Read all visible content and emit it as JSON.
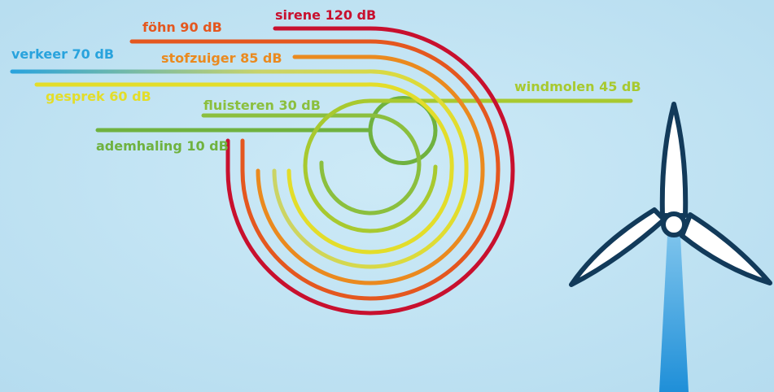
{
  "sources": [
    {
      "label": "sirene 120 dB",
      "color": "#c8102e"
    },
    {
      "label": "föhn 90 dB",
      "color": "#e4571f"
    },
    {
      "label": "stofzuiger 85 dB",
      "color": "#ea8a1f"
    },
    {
      "label": "verkeer 70 dB",
      "color": "#29a3dd"
    },
    {
      "label": "gesprek 60 dB",
      "color": "#e3dd2a"
    },
    {
      "label": "windmolen 45 dB",
      "color": "#a8c92f"
    },
    {
      "label": "fluisteren 30 dB",
      "color": "#8bbf3e"
    },
    {
      "label": "ademhaling 10 dB",
      "color": "#6fb23f"
    }
  ],
  "turbine": {
    "blade_color": "#ffffff",
    "outline_color": "#123a5a",
    "tower_color": "#1f8fd8"
  }
}
